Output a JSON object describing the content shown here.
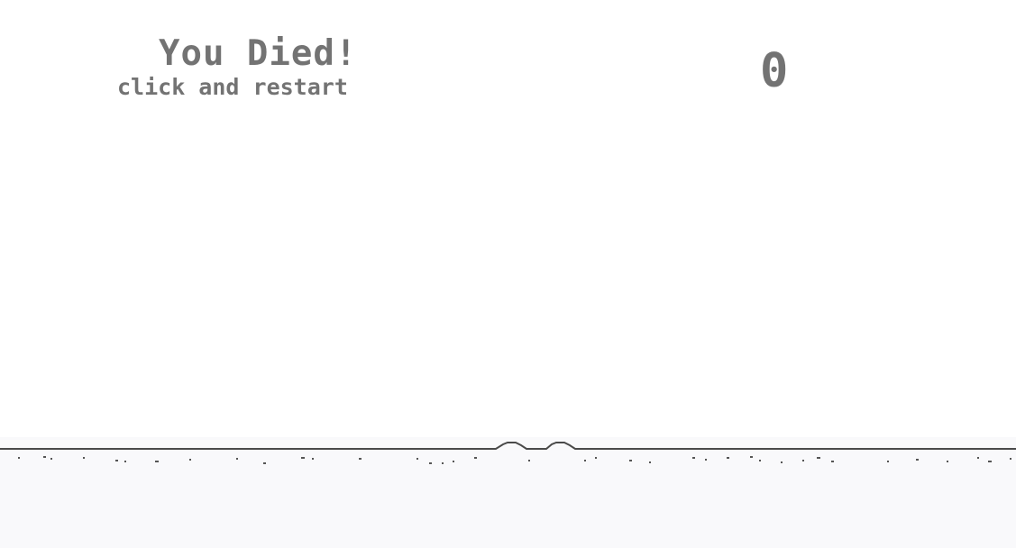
{
  "screen": {
    "title": "You Died!",
    "subtitle": "click and restart",
    "score": "0"
  },
  "colors": {
    "background": "#ffffff",
    "text": "#737373",
    "ground_line": "#4a4a4a",
    "ground_fill": "#f9f9fb"
  }
}
